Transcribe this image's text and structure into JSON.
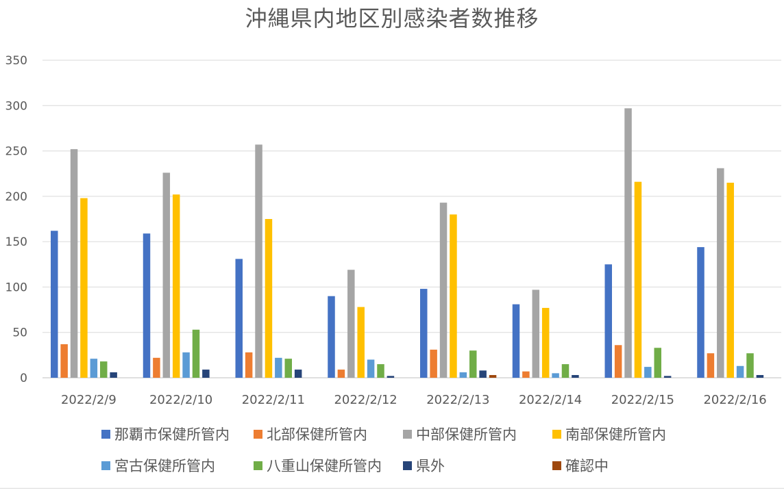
{
  "chart_data": {
    "type": "bar",
    "title": "沖縄県内地区別感染者数推移",
    "xlabel": "",
    "ylabel": "",
    "ylim": [
      0,
      350
    ],
    "yticks": [
      0,
      50,
      100,
      150,
      200,
      250,
      300,
      350
    ],
    "grid": true,
    "legend_position": "bottom",
    "categories": [
      "2022/2/9",
      "2022/2/10",
      "2022/2/11",
      "2022/2/12",
      "2022/2/13",
      "2022/2/14",
      "2022/2/15",
      "2022/2/16"
    ],
    "series": [
      {
        "name": "那覇市保健所管内",
        "color": "#4472C4",
        "values": [
          162,
          159,
          131,
          90,
          98,
          81,
          125,
          144
        ]
      },
      {
        "name": "北部保健所管内",
        "color": "#ED7D31",
        "values": [
          37,
          22,
          28,
          9,
          31,
          7,
          36,
          27
        ]
      },
      {
        "name": "中部保健所管内",
        "color": "#A5A5A5",
        "values": [
          252,
          226,
          257,
          119,
          193,
          97,
          297,
          231
        ]
      },
      {
        "name": "南部保健所管内",
        "color": "#FFC000",
        "values": [
          198,
          202,
          175,
          78,
          180,
          77,
          216,
          215
        ]
      },
      {
        "name": "宮古保健所管内",
        "color": "#5B9BD5",
        "values": [
          21,
          28,
          22,
          20,
          6,
          5,
          12,
          13
        ]
      },
      {
        "name": "八重山保健所管内",
        "color": "#70AD47",
        "values": [
          18,
          53,
          21,
          15,
          30,
          15,
          33,
          27
        ]
      },
      {
        "name": "県外",
        "color": "#264478",
        "values": [
          6,
          9,
          9,
          2,
          8,
          3,
          2,
          3
        ]
      },
      {
        "name": "確認中",
        "color": "#9E480E",
        "values": [
          0,
          0,
          0,
          0,
          3,
          0,
          0,
          0
        ]
      }
    ]
  }
}
